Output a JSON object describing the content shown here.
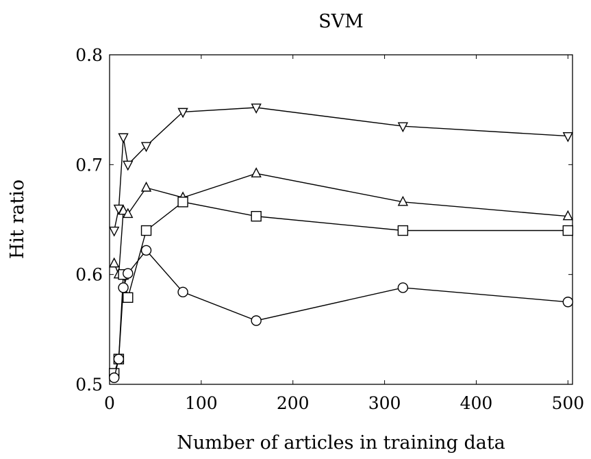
{
  "chart_data": {
    "type": "line",
    "title": "SVM",
    "xlabel": "Number of articles in training data",
    "ylabel": "Hit ratio",
    "xlim": [
      0,
      505
    ],
    "ylim": [
      0.5,
      0.8
    ],
    "xticks": [
      0,
      100,
      200,
      300,
      400,
      500
    ],
    "yticks": [
      0.5,
      0.6,
      0.7,
      0.8
    ],
    "xtick_labels": [
      "0",
      "100",
      "200",
      "300",
      "400",
      "500"
    ],
    "ytick_labels": [
      "0.5",
      "0.6",
      "0.7",
      "0.8"
    ],
    "grid": false,
    "legend": false,
    "series": [
      {
        "marker": "triangle-down",
        "x": [
          5,
          10,
          15,
          20,
          40,
          80,
          160,
          320,
          500
        ],
        "y": [
          0.64,
          0.66,
          0.725,
          0.7,
          0.717,
          0.748,
          0.752,
          0.735,
          0.726
        ]
      },
      {
        "marker": "triangle-up",
        "x": [
          5,
          10,
          15,
          20,
          40,
          80,
          160,
          320,
          500
        ],
        "y": [
          0.61,
          0.6,
          0.658,
          0.655,
          0.679,
          0.67,
          0.692,
          0.666,
          0.653
        ]
      },
      {
        "marker": "square",
        "x": [
          5,
          10,
          15,
          20,
          40,
          80,
          160,
          320,
          500
        ],
        "y": [
          0.51,
          0.523,
          0.6,
          0.579,
          0.64,
          0.666,
          0.653,
          0.64,
          0.64
        ]
      },
      {
        "marker": "circle",
        "x": [
          5,
          10,
          15,
          20,
          40,
          80,
          160,
          320,
          500
        ],
        "y": [
          0.506,
          0.523,
          0.588,
          0.601,
          0.622,
          0.584,
          0.558,
          0.588,
          0.575
        ]
      }
    ]
  }
}
